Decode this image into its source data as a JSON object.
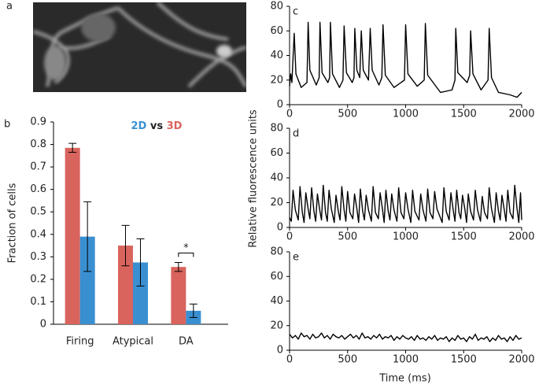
{
  "image_panel": {
    "panel_label": "a"
  },
  "shared_axes": {
    "ylabel": "Relative fluorescence units",
    "xlabel": "Time (ms)"
  },
  "chart_data": [
    {
      "type": "bar",
      "panel_label": "b",
      "ylabel": "Fraction of cells",
      "legend_joiner": "vs",
      "categories": [
        "Firing",
        "Atypical",
        "DA"
      ],
      "series": [
        {
          "name": "3D",
          "color": "#d9645e",
          "values": [
            0.785,
            0.35,
            0.255
          ],
          "errors": [
            0.02,
            0.09,
            0.02
          ]
        },
        {
          "name": "2D",
          "color": "#3a8fd1",
          "values": [
            0.39,
            0.275,
            0.06
          ],
          "errors": [
            0.155,
            0.105,
            0.03
          ]
        }
      ],
      "annotation": "*",
      "ylim": [
        0,
        0.9
      ],
      "yticks": [
        0,
        0.1,
        0.2,
        0.3,
        0.4,
        0.5,
        0.6,
        0.7,
        0.8,
        0.9
      ]
    },
    {
      "type": "line",
      "panel_label": "c",
      "color": "#000000",
      "x": [
        0,
        10,
        20,
        40,
        55,
        100,
        150,
        160,
        175,
        230,
        255,
        262,
        280,
        330,
        345,
        352,
        370,
        430,
        460,
        470,
        490,
        540,
        555,
        562,
        580,
        605,
        618,
        635,
        680,
        695,
        712,
        770,
        795,
        805,
        825,
        900,
        990,
        1000,
        1020,
        1100,
        1160,
        1170,
        1190,
        1300,
        1400,
        1425,
        1432,
        1450,
        1530,
        1552,
        1560,
        1580,
        1650,
        1710,
        1720,
        1740,
        1800,
        1900,
        1960,
        2000
      ],
      "values": [
        15,
        25,
        18,
        58,
        25,
        14,
        18,
        67,
        28,
        16,
        22,
        67,
        26,
        18,
        22,
        67,
        25,
        14,
        20,
        64,
        26,
        18,
        22,
        62,
        28,
        22,
        60,
        28,
        20,
        62,
        28,
        16,
        22,
        65,
        24,
        14,
        20,
        65,
        25,
        15,
        20,
        66,
        24,
        10,
        12,
        20,
        62,
        26,
        18,
        24,
        60,
        25,
        12,
        20,
        62,
        22,
        10,
        8,
        6,
        10
      ],
      "xlim": [
        0,
        2000
      ],
      "xticks": [
        0,
        500,
        1000,
        1500,
        2000
      ],
      "ylim": [
        0,
        80
      ],
      "yticks": [
        0,
        20,
        40,
        60,
        80
      ]
    },
    {
      "type": "line",
      "panel_label": "d",
      "color": "#000000",
      "x": [
        0,
        15,
        30,
        50,
        75,
        90,
        110,
        125,
        140,
        160,
        175,
        190,
        210,
        225,
        240,
        260,
        275,
        290,
        310,
        325,
        340,
        360,
        385,
        400,
        420,
        435,
        450,
        470,
        485,
        500,
        520,
        545,
        560,
        580,
        595,
        610,
        630,
        645,
        660,
        680,
        705,
        720,
        740,
        765,
        780,
        800,
        815,
        830,
        850,
        865,
        880,
        900,
        925,
        940,
        960,
        985,
        1000,
        1020,
        1045,
        1060,
        1080,
        1115,
        1130,
        1150,
        1175,
        1190,
        1210,
        1235,
        1250,
        1270,
        1315,
        1330,
        1350,
        1375,
        1390,
        1410,
        1425,
        1440,
        1460,
        1475,
        1490,
        1510,
        1525,
        1540,
        1560,
        1585,
        1600,
        1620,
        1645,
        1660,
        1680,
        1705,
        1720,
        1740,
        1765,
        1780,
        1800,
        1815,
        1830,
        1850,
        1865,
        1880,
        1900,
        1925,
        1940,
        1960,
        1975,
        1990,
        2000
      ],
      "values": [
        8,
        5,
        30,
        14,
        6,
        33,
        12,
        4,
        28,
        15,
        7,
        32,
        13,
        5,
        27,
        14,
        6,
        34,
        12,
        5,
        30,
        15,
        4,
        26,
        13,
        6,
        33,
        14,
        5,
        29,
        12,
        7,
        27,
        15,
        4,
        31,
        13,
        6,
        26,
        14,
        5,
        33,
        12,
        7,
        28,
        15,
        4,
        30,
        13,
        6,
        27,
        14,
        5,
        32,
        12,
        7,
        28,
        15,
        4,
        30,
        13,
        6,
        27,
        14,
        5,
        31,
        12,
        7,
        29,
        15,
        4,
        32,
        13,
        6,
        28,
        14,
        5,
        30,
        12,
        7,
        26,
        15,
        4,
        27,
        13,
        6,
        30,
        14,
        5,
        25,
        12,
        7,
        32,
        15,
        4,
        28,
        13,
        6,
        26,
        14,
        5,
        30,
        12,
        7,
        34,
        15,
        4,
        28,
        6
      ],
      "xlim": [
        0,
        2000
      ],
      "xticks": [
        0,
        500,
        1000,
        1500,
        2000
      ],
      "ylim": [
        0,
        80
      ],
      "yticks": [
        0,
        20,
        40,
        60,
        80
      ]
    },
    {
      "type": "line",
      "panel_label": "e",
      "color": "#000000",
      "x": [
        0,
        25,
        50,
        75,
        100,
        125,
        150,
        175,
        200,
        225,
        250,
        275,
        300,
        325,
        350,
        375,
        400,
        425,
        450,
        475,
        500,
        525,
        550,
        575,
        600,
        625,
        650,
        675,
        700,
        725,
        750,
        775,
        800,
        825,
        850,
        875,
        900,
        925,
        950,
        975,
        1000,
        1025,
        1050,
        1075,
        1100,
        1125,
        1150,
        1175,
        1200,
        1225,
        1250,
        1275,
        1300,
        1325,
        1350,
        1375,
        1400,
        1425,
        1450,
        1475,
        1500,
        1525,
        1550,
        1575,
        1600,
        1625,
        1650,
        1675,
        1700,
        1725,
        1750,
        1775,
        1800,
        1825,
        1850,
        1875,
        1900,
        1925,
        1950,
        1975,
        2000
      ],
      "values": [
        13,
        10,
        12,
        9,
        14,
        11,
        12,
        9,
        13,
        10,
        11,
        14,
        10,
        12,
        9,
        13,
        11,
        10,
        12,
        9,
        11,
        13,
        10,
        12,
        9,
        14,
        10,
        11,
        9,
        12,
        10,
        13,
        9,
        11,
        10,
        12,
        8,
        11,
        9,
        12,
        10,
        9,
        11,
        8,
        12,
        9,
        10,
        8,
        11,
        9,
        12,
        8,
        10,
        9,
        11,
        7,
        10,
        8,
        12,
        9,
        10,
        7,
        11,
        9,
        13,
        8,
        10,
        9,
        11,
        7,
        10,
        8,
        12,
        9,
        10,
        7,
        11,
        8,
        12,
        9,
        10
      ],
      "xlim": [
        0,
        2000
      ],
      "xticks": [
        0,
        500,
        1000,
        1500,
        2000
      ],
      "ylim": [
        0,
        80
      ],
      "yticks": [
        0,
        20,
        40,
        60,
        80
      ]
    }
  ]
}
